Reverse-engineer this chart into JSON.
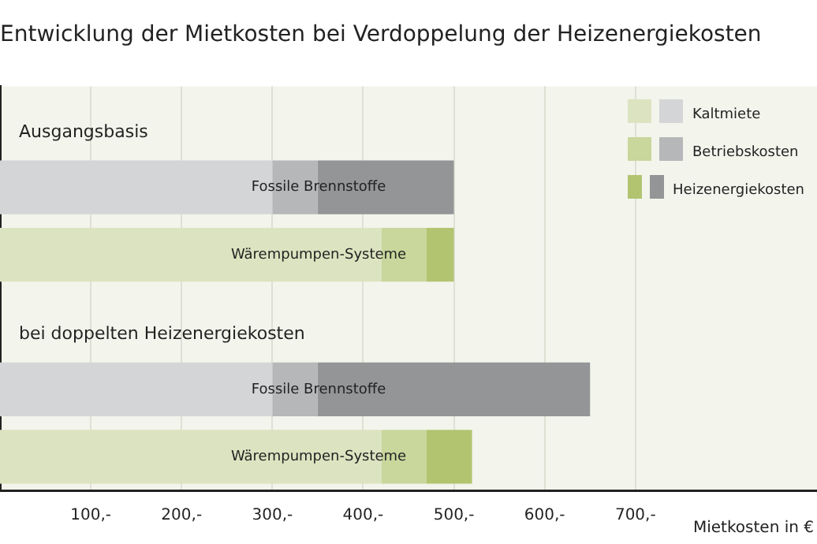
{
  "chart_data": {
    "type": "bar",
    "title": "Entwicklung der Mietkosten bei Verdoppelung der Heizenergiekosten",
    "xlabel": "Mietkosten in €",
    "orientation": "horizontal",
    "stacked": true,
    "categories": [
      "Ausgangsbasis",
      "Fossile Brennstoffe",
      "Wärempumpen-Systeme",
      "bei doppelten Heizenergiekosten",
      "Fossile Brennstoffe",
      "Wärempumpen-Systeme"
    ],
    "series": [
      {
        "name": "Kaltmiete",
        "colors": [
          null,
          "#d3d5d6",
          "#dce3c0",
          null,
          "#d3d5d6",
          "#dce3c0"
        ],
        "values": [
          null,
          300,
          420,
          null,
          300,
          420
        ]
      },
      {
        "name": "Betriebskosten",
        "colors": [
          null,
          "#b5b7b9",
          "#c9d69c",
          null,
          "#b5b7b9",
          "#c9d69c"
        ],
        "values": [
          null,
          50,
          50,
          null,
          50,
          50
        ]
      },
      {
        "name": "Heizenergiekosten",
        "colors": [
          null,
          "#939597",
          "#b2c470",
          null,
          "#939597",
          "#b2c470"
        ],
        "values": [
          null,
          150,
          30,
          null,
          300,
          50
        ]
      }
    ],
    "xlim": [
      0,
      900
    ],
    "xticks": [
      {
        "value": 100,
        "label": "100,-"
      },
      {
        "value": 200,
        "label": "200,-"
      },
      {
        "value": 300,
        "label": "300,-"
      },
      {
        "value": 400,
        "label": "400,-"
      },
      {
        "value": 500,
        "label": "500,-"
      },
      {
        "value": 600,
        "label": "600,-"
      },
      {
        "value": 700,
        "label": "700,-"
      }
    ],
    "grid": "x",
    "legend": "top right"
  }
}
